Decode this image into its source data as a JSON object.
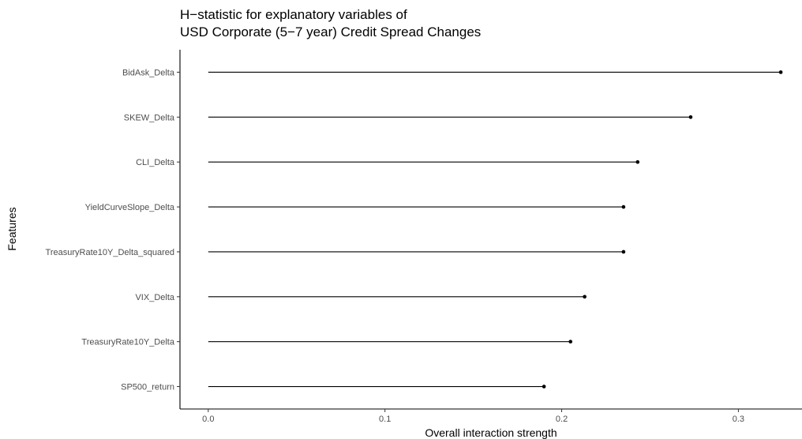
{
  "chart_data": {
    "type": "lollipop",
    "title_lines": [
      "H−statistic for explanatory variables of",
      "USD Corporate (5−7 year) Credit Spread Changes"
    ],
    "xlabel": "Overall interaction strength",
    "ylabel": "Features",
    "xlim": [
      -0.016,
      0.336
    ],
    "xticks": [
      0.0,
      0.1,
      0.2,
      0.3
    ],
    "xtick_labels": [
      "0.0",
      "0.1",
      "0.2",
      "0.3"
    ],
    "grid": false,
    "categories": [
      "BidAsk_Delta",
      "SKEW_Delta",
      "CLI_Delta",
      "YieldCurveSlope_Delta",
      "TreasuryRate10Y_Delta_squared",
      "VIX_Delta",
      "TreasuryRate10Y_Delta",
      "SP500_return"
    ],
    "values": [
      0.324,
      0.273,
      0.243,
      0.235,
      0.235,
      0.213,
      0.205,
      0.19
    ]
  }
}
